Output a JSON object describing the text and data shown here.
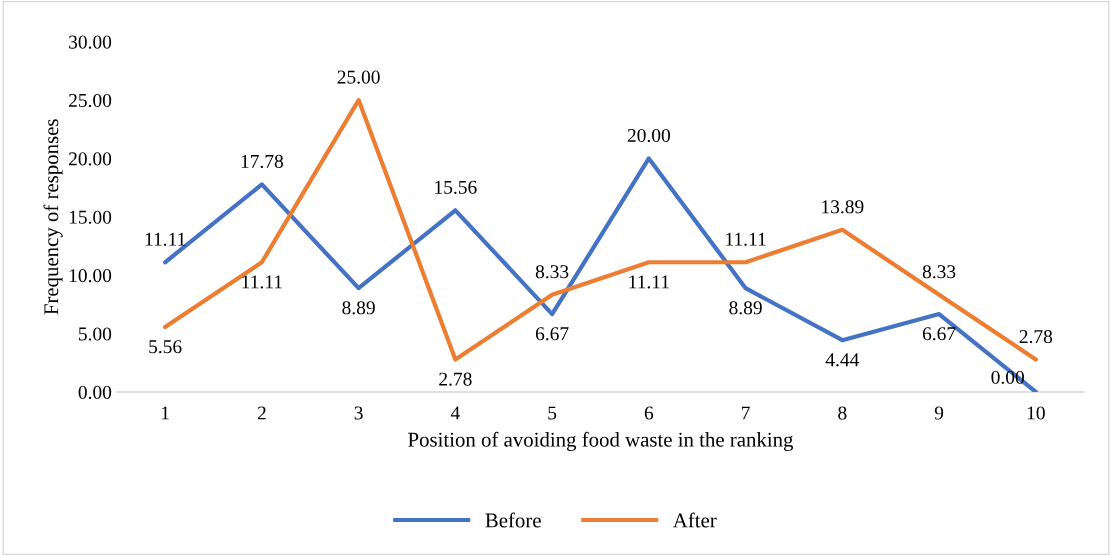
{
  "chart_data": {
    "type": "line",
    "xlabel": "Position of avoiding food waste in the ranking",
    "ylabel": "Frequency of responses",
    "categories": [
      "1",
      "2",
      "3",
      "4",
      "5",
      "6",
      "7",
      "8",
      "9",
      "10"
    ],
    "series": [
      {
        "name": "Before",
        "color": "#4472c4",
        "values": [
          11.11,
          17.78,
          8.89,
          15.56,
          6.67,
          20.0,
          8.89,
          4.44,
          6.67,
          0.0
        ],
        "value_labels": [
          "11.11",
          "17.78",
          "8.89",
          "15.56",
          "6.67",
          "20.00",
          "8.89",
          "4.44",
          "6.67",
          "0.00"
        ]
      },
      {
        "name": "After",
        "color": "#ed7d31",
        "values": [
          5.56,
          11.11,
          25.0,
          2.78,
          8.33,
          11.11,
          11.11,
          13.89,
          8.33,
          2.78
        ],
        "value_labels": [
          "5.56",
          "11.11",
          "25.00",
          "2.78",
          "8.33",
          "11.11",
          "11.11",
          "13.89",
          "8.33",
          "2.78"
        ]
      }
    ],
    "ylim": [
      0,
      30
    ],
    "yticks": [
      {
        "value": 0,
        "label": "0.00"
      },
      {
        "value": 5,
        "label": "5.00"
      },
      {
        "value": 10,
        "label": "10.00"
      },
      {
        "value": 15,
        "label": "15.00"
      },
      {
        "value": 20,
        "label": "20.00"
      },
      {
        "value": 25,
        "label": "25.00"
      },
      {
        "value": 30,
        "label": "30.00"
      }
    ],
    "grid": false,
    "legend": "bottom",
    "marker": "none",
    "line_style": "solid"
  }
}
